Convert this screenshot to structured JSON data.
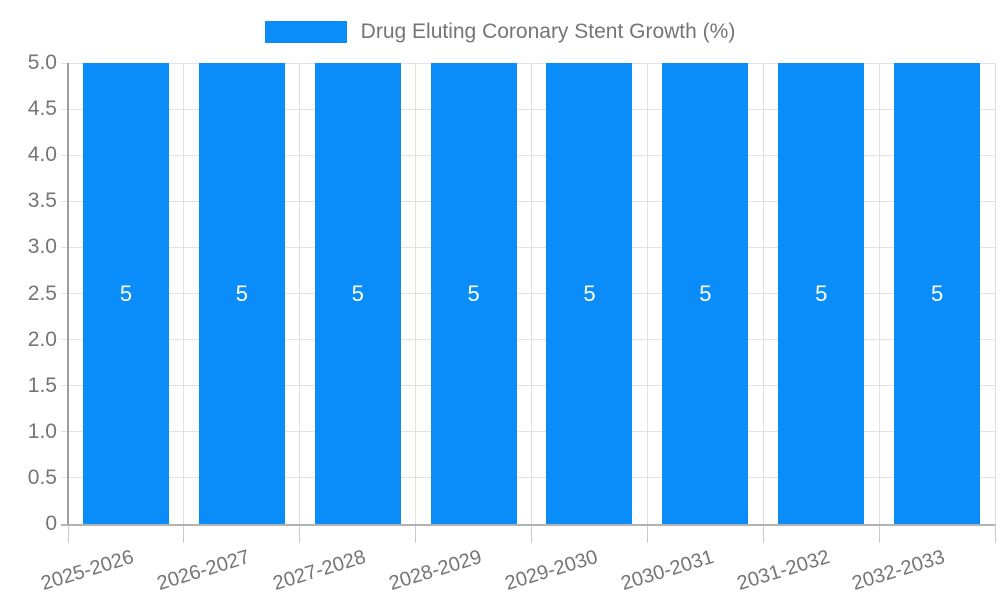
{
  "chart_data": {
    "type": "bar",
    "title": "",
    "legend": "Drug Eluting Coronary Stent Growth (%)",
    "legend_position": "top",
    "categories": [
      "2025-2026",
      "2026-2027",
      "2027-2028",
      "2028-2029",
      "2029-2030",
      "2030-2031",
      "2031-2032",
      "2032-2033"
    ],
    "values": [
      5,
      5,
      5,
      5,
      5,
      5,
      5,
      5
    ],
    "bar_value_labels": [
      "5",
      "5",
      "5",
      "5",
      "5",
      "5",
      "5",
      "5"
    ],
    "xlabel": "",
    "ylabel": "",
    "ylim": [
      0,
      5
    ],
    "ytick_step": 0.5,
    "ytick_labels": [
      "0",
      "0.5",
      "1.0",
      "1.5",
      "2.0",
      "2.5",
      "3.0",
      "3.5",
      "4.0",
      "4.5",
      "5.0"
    ],
    "grid": true,
    "colors": {
      "bar": "#0a8df8",
      "value_label": "#ffffff",
      "text": "#757575",
      "grid": "#e2e2e2",
      "tick": "#c9c9c9",
      "y_axis": "#9e9e9e",
      "x_axis": "#b3b3b3",
      "background": "#ffffff"
    }
  }
}
